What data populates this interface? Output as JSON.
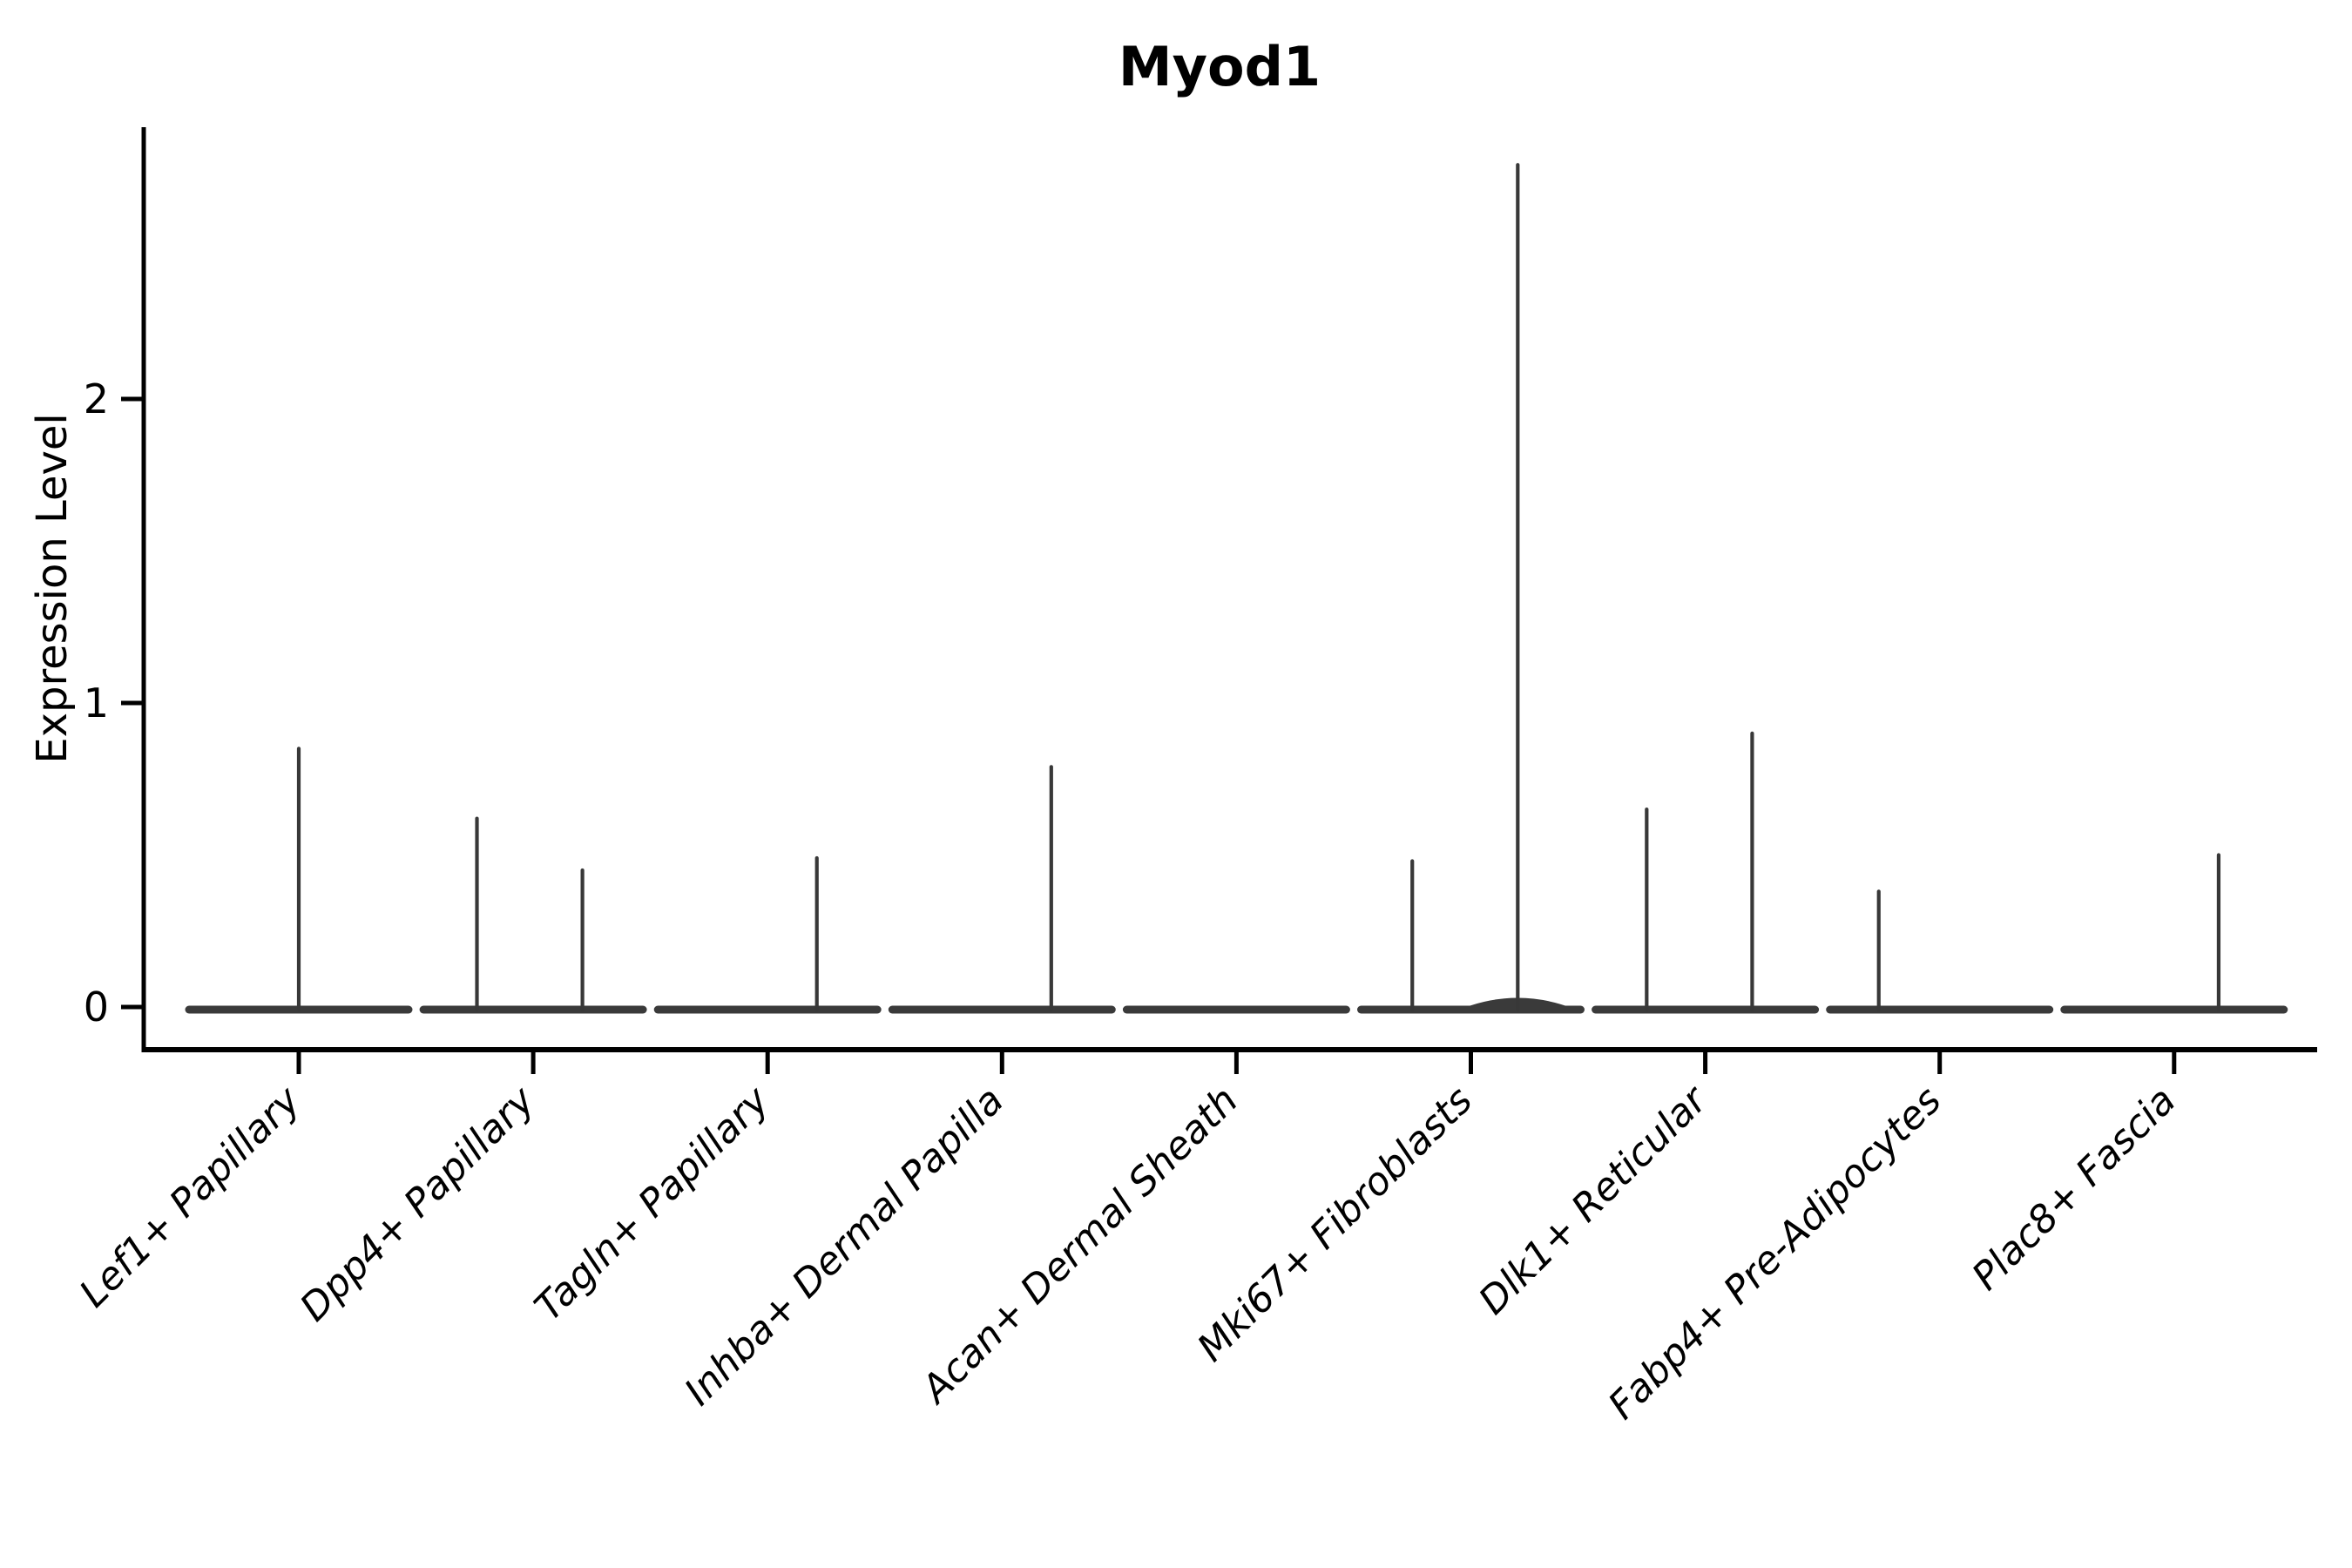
{
  "figure": {
    "title": "Myod1"
  },
  "chart_data": {
    "type": "violin",
    "title": "Myod1",
    "xlabel": "",
    "ylabel": "Expression Level",
    "yticks": [
      0,
      1,
      2
    ],
    "ylim": [
      -0.16,
      2.9
    ],
    "grid": false,
    "legend": null,
    "categories": [
      "Lef1+ Papillary",
      "Dpp4+ Papillary",
      "Tagln+ Papillary",
      "Inhba+ Dermal Papilla",
      "Acan+ Dermal Sheath",
      "Mki67+ Fibroblasts",
      "Dlk1+ Reticular",
      "Fabp4+ Pre-Adipocytes",
      "Plac8+ Fascia"
    ],
    "description": "Violin plot of Myod1 expression; nearly all cells at 0 so violins collapse to flat baselines with thin spikes marking rare expressing cells.",
    "violins": [
      {
        "category": "Lef1+ Papillary",
        "baseline_value": 0,
        "spikes": [
          {
            "offset": 0.0,
            "value": 0.85
          }
        ]
      },
      {
        "category": "Dpp4+ Papillary",
        "baseline_value": 0,
        "spikes": [
          {
            "offset": -0.24,
            "value": 0.62
          },
          {
            "offset": 0.21,
            "value": 0.45
          }
        ]
      },
      {
        "category": "Tagln+ Papillary",
        "baseline_value": 0,
        "spikes": [
          {
            "offset": 0.21,
            "value": 0.49
          }
        ]
      },
      {
        "category": "Inhba+ Dermal Papilla",
        "baseline_value": 0,
        "spikes": [
          {
            "offset": 0.21,
            "value": 0.79
          }
        ]
      },
      {
        "category": "Acan+ Dermal Sheath",
        "baseline_value": 0,
        "spikes": []
      },
      {
        "category": "Mki67+ Fibroblasts",
        "baseline_value": 0,
        "spikes": [
          {
            "offset": -0.25,
            "value": 0.48
          },
          {
            "offset": 0.2,
            "value": 2.77
          }
        ],
        "bump": {
          "offset": 0.2,
          "half_width": 0.23,
          "height": 0.06
        }
      },
      {
        "category": "Dlk1+ Reticular",
        "baseline_value": 0,
        "spikes": [
          {
            "offset": -0.25,
            "value": 0.65
          },
          {
            "offset": 0.2,
            "value": 0.9
          }
        ]
      },
      {
        "category": "Fabp4+ Pre-Adipocytes",
        "baseline_value": 0,
        "spikes": [
          {
            "offset": -0.26,
            "value": 0.38
          }
        ]
      },
      {
        "category": "Plac8+ Fascia",
        "baseline_value": 0,
        "spikes": [
          {
            "offset": 0.19,
            "value": 0.5
          }
        ]
      }
    ],
    "colors": {
      "violin_body": "#3a3a3a",
      "spike": "#383838",
      "axis": "#000000",
      "text": "#000000",
      "background": "#ffffff"
    }
  }
}
